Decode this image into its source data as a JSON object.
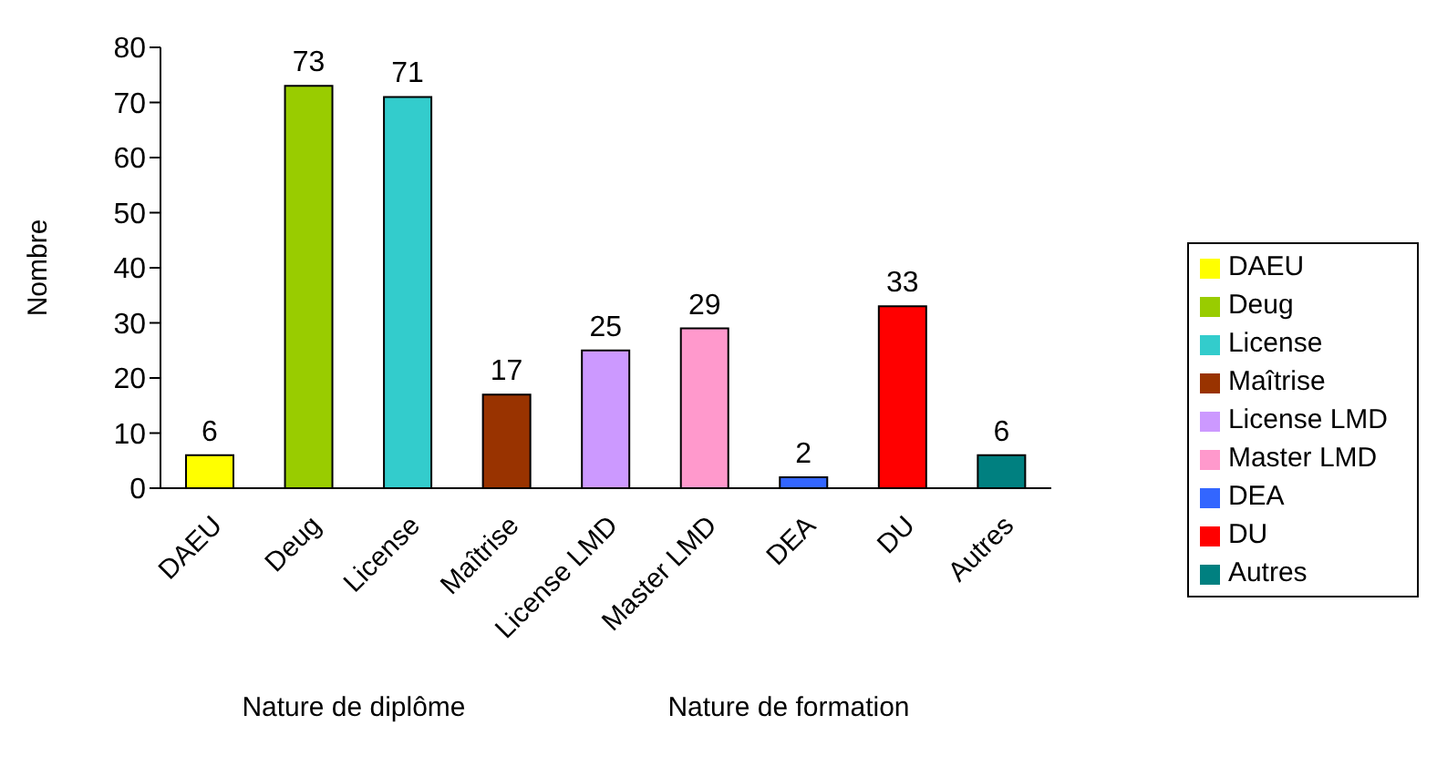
{
  "chart_data": {
    "type": "bar",
    "ylabel": "Nombre",
    "stacked": true,
    "categories": [
      "DAEU",
      "Deug",
      "License",
      "Maîtrise",
      "License LMD",
      "Master LMD",
      "DEA",
      "DU",
      "Autres"
    ],
    "series": [
      {
        "name": "DAEU",
        "color": "#ffff00",
        "values": [
          6,
          null,
          null,
          null,
          null,
          null,
          null,
          null,
          null
        ]
      },
      {
        "name": "Deug",
        "color": "#99cc00",
        "values": [
          null,
          73,
          null,
          null,
          null,
          null,
          null,
          null,
          null
        ]
      },
      {
        "name": "License",
        "color": "#33cccc",
        "values": [
          null,
          null,
          71,
          null,
          null,
          null,
          null,
          null,
          null
        ]
      },
      {
        "name": "Maîtrise",
        "color": "#993300",
        "values": [
          null,
          null,
          null,
          17,
          null,
          null,
          null,
          null,
          null
        ]
      },
      {
        "name": "License LMD",
        "color": "#cc99ff",
        "values": [
          null,
          null,
          null,
          null,
          25,
          null,
          null,
          null,
          null
        ]
      },
      {
        "name": "Master LMD",
        "color": "#ff99cc",
        "values": [
          null,
          null,
          null,
          null,
          null,
          29,
          null,
          null,
          null
        ]
      },
      {
        "name": "DEA",
        "color": "#3366ff",
        "values": [
          null,
          null,
          null,
          null,
          null,
          null,
          2,
          null,
          null
        ]
      },
      {
        "name": "DU",
        "color": "#ff0000",
        "values": [
          null,
          null,
          null,
          null,
          null,
          null,
          null,
          33,
          null
        ]
      },
      {
        "name": "Autres",
        "color": "#008080",
        "values": [
          null,
          null,
          null,
          null,
          null,
          null,
          null,
          null,
          6
        ]
      }
    ],
    "ylim": [
      0,
      80
    ],
    "yticks": [
      0,
      10,
      20,
      30,
      40,
      50,
      60,
      70,
      80
    ],
    "data_labels": true,
    "grid": false,
    "legend": "right",
    "annotations": [
      "Nature de diplôme",
      "Nature de formation"
    ]
  }
}
